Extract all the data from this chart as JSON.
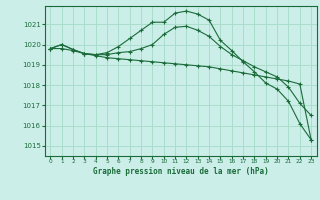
{
  "background_color": "#cceee8",
  "grid_color": "#aaddcc",
  "line_color": "#1a6b3a",
  "title": "Graphe pression niveau de la mer (hPa)",
  "xlim": [
    -0.5,
    23.5
  ],
  "ylim": [
    1014.5,
    1021.9
  ],
  "yticks": [
    1015,
    1016,
    1017,
    1018,
    1019,
    1020,
    1021
  ],
  "xticks": [
    0,
    1,
    2,
    3,
    4,
    5,
    6,
    7,
    8,
    9,
    10,
    11,
    12,
    13,
    14,
    15,
    16,
    17,
    18,
    19,
    20,
    21,
    22,
    23
  ],
  "series": [
    {
      "x": [
        0,
        1,
        2,
        3,
        4,
        5,
        6,
        7,
        8,
        9,
        10,
        11,
        12,
        13,
        14,
        15,
        16,
        17,
        18,
        19,
        20,
        21,
        22,
        23
      ],
      "y": [
        1019.8,
        1020.0,
        1019.75,
        1019.55,
        1019.5,
        1019.6,
        1019.9,
        1020.3,
        1020.7,
        1021.1,
        1021.1,
        1021.55,
        1021.65,
        1021.5,
        1021.2,
        1020.2,
        1019.7,
        1019.15,
        1018.65,
        1018.1,
        1017.8,
        1017.2,
        1016.1,
        1015.3
      ],
      "markers": true
    },
    {
      "x": [
        0,
        1,
        2,
        3,
        4,
        5,
        6,
        7,
        8,
        9,
        10,
        11,
        12,
        13,
        14,
        15,
        16,
        17,
        18,
        19,
        20,
        21,
        22,
        23
      ],
      "y": [
        1019.8,
        1020.0,
        1019.75,
        1019.55,
        1019.5,
        1019.5,
        1019.6,
        1019.65,
        1019.8,
        1020.0,
        1020.5,
        1020.85,
        1020.9,
        1020.7,
        1020.4,
        1019.9,
        1019.5,
        1019.2,
        1018.9,
        1018.65,
        1018.4,
        1017.9,
        1017.1,
        1016.5
      ],
      "markers": true
    },
    {
      "x": [
        0,
        1,
        2,
        3,
        4,
        5,
        6,
        7,
        8,
        9,
        10,
        11,
        12,
        13,
        14,
        15,
        16,
        17,
        18,
        19,
        20,
        21,
        22,
        23
      ],
      "y": [
        1019.8,
        1019.8,
        1019.7,
        1019.55,
        1019.45,
        1019.35,
        1019.3,
        1019.25,
        1019.2,
        1019.15,
        1019.1,
        1019.05,
        1019.0,
        1018.95,
        1018.9,
        1018.8,
        1018.7,
        1018.6,
        1018.5,
        1018.4,
        1018.3,
        1018.2,
        1018.05,
        1015.3
      ],
      "markers": true
    }
  ]
}
